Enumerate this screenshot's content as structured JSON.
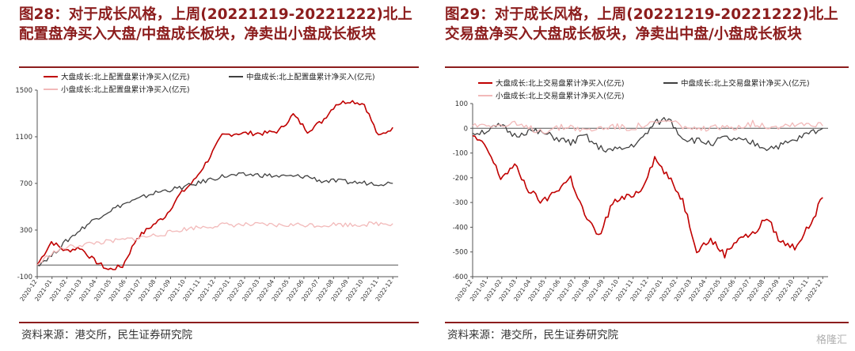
{
  "panels": [
    {
      "title": "图28：对于成长风格，上周(20221219-20221222)北上配置盘净买入大盘/中盘成长板块，净卖出小盘成长板块",
      "source": "资料来源：港交所，民生证券研究院"
    },
    {
      "title": "图29：对于成长风格，上周(20221219-20221222)北上交易盘净买入大盘成长板块，净卖出中盘/小盘成长板块",
      "source": "资料来源：港交所，民生证券研究院"
    }
  ],
  "watermark": "格隆汇",
  "colors": {
    "red": "#c00000",
    "gray": "#404040",
    "pink": "#f2b9b9",
    "title": "#8c1d1d"
  },
  "chart_data": [
    {
      "type": "line",
      "ylim": [
        -100,
        1500
      ],
      "yticks": [
        -100,
        300,
        700,
        1100,
        1500
      ],
      "legend_position": "top",
      "x_tick_labels": [
        "2020-12",
        "2021-01",
        "2021-02",
        "2021-03",
        "2021-04",
        "2021-05",
        "2021-06",
        "2021-07",
        "2021-08",
        "2021-09",
        "2021-10",
        "2021-11",
        "2021-12",
        "2022-01",
        "2022-02",
        "2022-03",
        "2022-04",
        "2022-05",
        "2022-06",
        "2022-07",
        "2022-08",
        "2022-09",
        "2022-10",
        "2022-11",
        "2022-12"
      ],
      "series": [
        {
          "name": "大盘成长:北上配置盘累计净买入(亿元)",
          "color": "#c00000",
          "values": [
            0,
            200,
            120,
            150,
            40,
            -40,
            -10,
            230,
            330,
            420,
            600,
            720,
            900,
            1110,
            1130,
            1130,
            1130,
            1150,
            1290,
            1150,
            1230,
            1380,
            1410,
            1380,
            1100,
            1180
          ]
        },
        {
          "name": "中盘成长:北上配置盘累计净买入(亿元)",
          "color": "#404040",
          "values": [
            0,
            80,
            200,
            300,
            390,
            460,
            520,
            560,
            610,
            640,
            660,
            690,
            730,
            760,
            770,
            775,
            770,
            760,
            760,
            760,
            720,
            720,
            710,
            705,
            700,
            700
          ]
        },
        {
          "name": "小盘成长:北上配置盘累计净买入(亿元)",
          "color": "#f2b9b9",
          "values": [
            0,
            100,
            150,
            170,
            190,
            200,
            215,
            230,
            250,
            270,
            300,
            320,
            330,
            345,
            345,
            345,
            345,
            340,
            345,
            345,
            340,
            350,
            345,
            350,
            355,
            355
          ]
        }
      ]
    },
    {
      "type": "line",
      "ylim": [
        -600,
        100
      ],
      "yticks": [
        -600,
        -500,
        -400,
        -300,
        -200,
        -100,
        0,
        100
      ],
      "legend_position": "top",
      "x_tick_labels": [
        "2020-12",
        "2021-01",
        "2021-02",
        "2021-03",
        "2021-04",
        "2021-05",
        "2021-06",
        "2021-07",
        "2021-08",
        "2021-09",
        "2021-10",
        "2021-11",
        "2021-12",
        "2022-01",
        "2022-02",
        "2022-03",
        "2022-04",
        "2022-05",
        "2022-06",
        "2022-07",
        "2022-08",
        "2022-09",
        "2022-10",
        "2022-11",
        "2022-12"
      ],
      "series": [
        {
          "name": "大盘成长:北上交易盘累计净买入(亿元)",
          "color": "#c00000",
          "values": [
            -30,
            -80,
            -200,
            -150,
            -250,
            -300,
            -250,
            -200,
            -350,
            -440,
            -300,
            -280,
            -250,
            -120,
            -200,
            -290,
            -490,
            -450,
            -510,
            -440,
            -430,
            -360,
            -460,
            -480,
            -400,
            -280
          ]
        },
        {
          "name": "中盘成长:北上交易盘累计净买入(亿元)",
          "color": "#404040",
          "values": [
            -20,
            -10,
            10,
            -30,
            -10,
            -20,
            -40,
            -60,
            -30,
            -80,
            -90,
            -80,
            -50,
            20,
            40,
            -40,
            -50,
            -60,
            -40,
            -50,
            -60,
            -80,
            -70,
            -50,
            -20,
            0
          ]
        },
        {
          "name": "小盘成长:北上交易盘累计净买入(亿元)",
          "color": "#f2b9b9",
          "values": [
            10,
            20,
            10,
            15,
            0,
            -10,
            0,
            10,
            -10,
            0,
            10,
            0,
            10,
            20,
            30,
            10,
            -10,
            0,
            0,
            10,
            20,
            10,
            10,
            20,
            20,
            10
          ]
        }
      ]
    }
  ]
}
